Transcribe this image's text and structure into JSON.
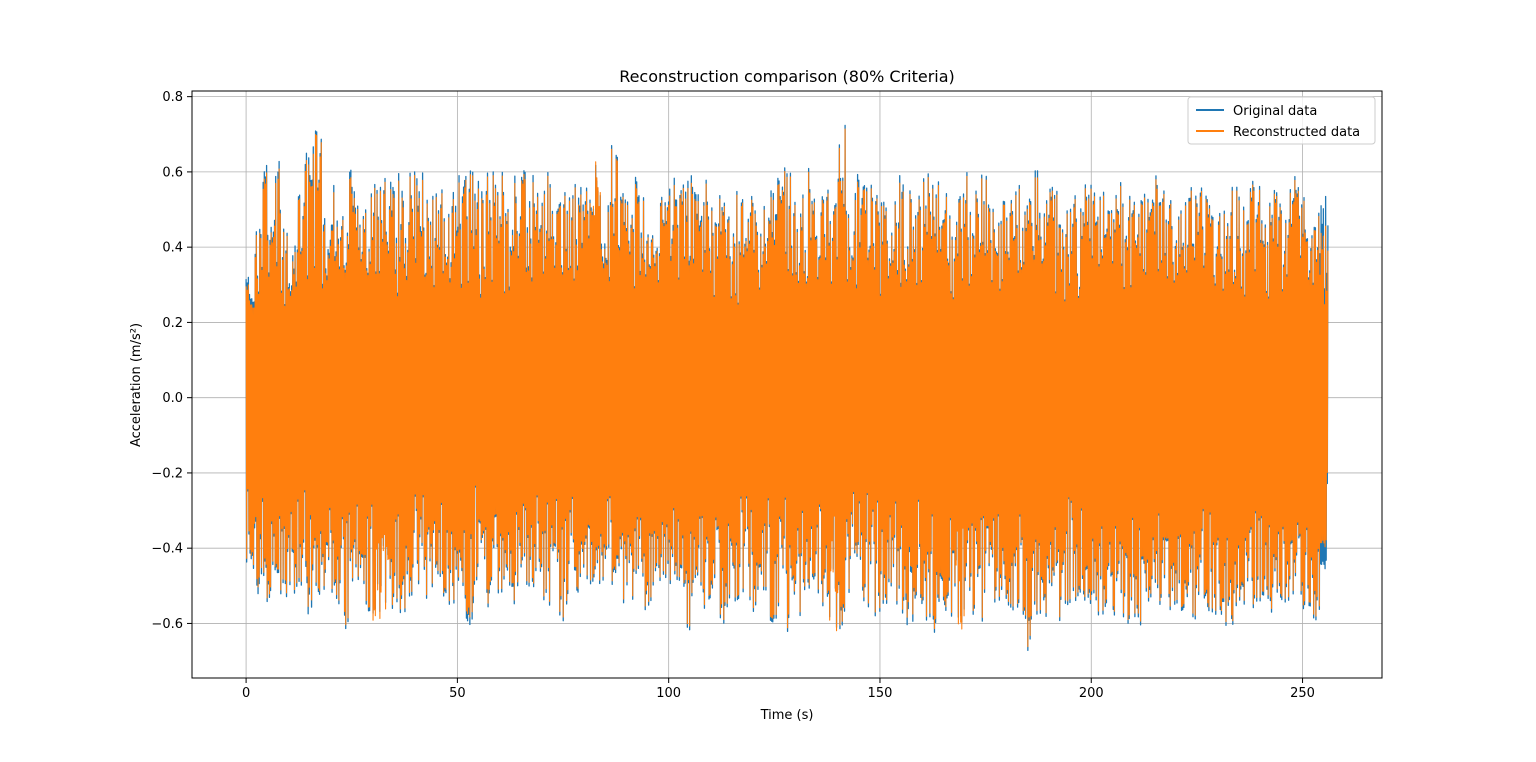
{
  "chart_data": {
    "type": "line",
    "title": "Reconstruction comparison (80% Criteria)",
    "xlabel": "Time (s)",
    "ylabel": "Acceleration (m/s²)",
    "xlim": [
      -12.8,
      268.8
    ],
    "ylim": [
      -0.745,
      0.815
    ],
    "xticks": [
      0,
      50,
      100,
      150,
      200,
      250
    ],
    "xtick_labels": [
      "0",
      "50",
      "100",
      "150",
      "200",
      "250"
    ],
    "yticks": [
      -0.6,
      -0.4,
      -0.2,
      0.0,
      0.2,
      0.4,
      0.6,
      0.8
    ],
    "ytick_labels": [
      "−0.6",
      "−0.4",
      "−0.2",
      "0.0",
      "0.2",
      "0.4",
      "0.6",
      "0.8"
    ],
    "grid": true,
    "legend_position": "top-right",
    "x_range": [
      0,
      256
    ],
    "series": [
      {
        "name": "Original data",
        "color": "#1f77b4",
        "envelope_upper": [
          0.33,
          0.45,
          0.62,
          0.63,
          0.53,
          0.47,
          0.55,
          0.68,
          0.74,
          0.52,
          0.59,
          0.5,
          0.62,
          0.6,
          0.56,
          0.56,
          0.58,
          0.6,
          0.6,
          0.63,
          0.62,
          0.54,
          0.56,
          0.56,
          0.6,
          0.6,
          0.61,
          0.58,
          0.61,
          0.61,
          0.63,
          0.62,
          0.61,
          0.62,
          0.55,
          0.61,
          0.61,
          0.58,
          0.63,
          0.58,
          0.58,
          0.66,
          0.57,
          0.67,
          0.55,
          0.55,
          0.62,
          0.57,
          0.52,
          0.59,
          0.6,
          0.62,
          0.6,
          0.6,
          0.58,
          0.59,
          0.57,
          0.52,
          0.56,
          0.55,
          0.56,
          0.55,
          0.62,
          0.62,
          0.63,
          0.56,
          0.61,
          0.55,
          0.56,
          0.57,
          0.75,
          0.5,
          0.6,
          0.58,
          0.58,
          0.54,
          0.59,
          0.6,
          0.59,
          0.55,
          0.62,
          0.58,
          0.58,
          0.53,
          0.55,
          0.61,
          0.55,
          0.59,
          0.57,
          0.54,
          0.58,
          0.57,
          0.55,
          0.65,
          0.58,
          0.57,
          0.55,
          0.57,
          0.53,
          0.56,
          0.56,
          0.55,
          0.6,
          0.58,
          0.54,
          0.6,
          0.55,
          0.58,
          0.6,
          0.56,
          0.58,
          0.6,
          0.55,
          0.6,
          0.56,
          0.55,
          0.58,
          0.57,
          0.55,
          0.6,
          0.55,
          0.56,
          0.54,
          0.57,
          0.6,
          0.55,
          0.54,
          0.55
        ],
        "envelope_lower": [
          -0.45,
          -0.58,
          -0.56,
          -0.5,
          -0.53,
          -0.55,
          -0.5,
          -0.58,
          -0.57,
          -0.53,
          -0.55,
          -0.62,
          -0.6,
          -0.55,
          -0.58,
          -0.62,
          -0.62,
          -0.57,
          -0.59,
          -0.55,
          -0.5,
          -0.57,
          -0.53,
          -0.57,
          -0.58,
          -0.57,
          -0.62,
          -0.52,
          -0.57,
          -0.52,
          -0.55,
          -0.54,
          -0.5,
          -0.52,
          -0.53,
          -0.55,
          -0.54,
          -0.6,
          -0.52,
          -0.52,
          -0.5,
          -0.55,
          -0.48,
          -0.52,
          -0.57,
          -0.6,
          -0.53,
          -0.58,
          -0.55,
          -0.51,
          -0.52,
          -0.53,
          -0.64,
          -0.57,
          -0.58,
          -0.5,
          -0.61,
          -0.54,
          -0.54,
          -0.55,
          -0.58,
          -0.55,
          -0.6,
          -0.54,
          -0.65,
          -0.58,
          -0.55,
          -0.53,
          -0.56,
          -0.65,
          -0.62,
          -0.53,
          -0.52,
          -0.55,
          -0.6,
          -0.58,
          -0.55,
          -0.58,
          -0.62,
          -0.56,
          -0.6,
          -0.63,
          -0.58,
          -0.6,
          -0.65,
          -0.55,
          -0.58,
          -0.61,
          -0.55,
          -0.55,
          -0.57,
          -0.59,
          -0.68,
          -0.62,
          -0.6,
          -0.55,
          -0.63,
          -0.56,
          -0.55,
          -0.57,
          -0.58,
          -0.57,
          -0.59,
          -0.58,
          -0.61,
          -0.6,
          -0.58,
          -0.55,
          -0.56,
          -0.6,
          -0.57,
          -0.58,
          -0.6,
          -0.56,
          -0.58,
          -0.6,
          -0.62,
          -0.58,
          -0.55,
          -0.57,
          -0.56,
          -0.6,
          -0.58,
          -0.57,
          -0.57,
          -0.58,
          -0.6,
          -0.47
        ]
      },
      {
        "name": "Reconstructed data",
        "color": "#ff7f0e",
        "envelope_upper": [
          0.31,
          0.44,
          0.6,
          0.61,
          0.52,
          0.45,
          0.54,
          0.66,
          0.73,
          0.5,
          0.57,
          0.49,
          0.6,
          0.59,
          0.55,
          0.55,
          0.57,
          0.58,
          0.58,
          0.62,
          0.6,
          0.53,
          0.55,
          0.55,
          0.58,
          0.58,
          0.6,
          0.56,
          0.6,
          0.6,
          0.62,
          0.6,
          0.6,
          0.6,
          0.54,
          0.6,
          0.6,
          0.57,
          0.62,
          0.56,
          0.57,
          0.67,
          0.55,
          0.66,
          0.54,
          0.54,
          0.6,
          0.56,
          0.51,
          0.58,
          0.58,
          0.61,
          0.58,
          0.58,
          0.57,
          0.58,
          0.56,
          0.51,
          0.55,
          0.54,
          0.55,
          0.54,
          0.6,
          0.61,
          0.62,
          0.55,
          0.6,
          0.54,
          0.55,
          0.56,
          0.74,
          0.49,
          0.58,
          0.57,
          0.57,
          0.53,
          0.58,
          0.58,
          0.58,
          0.54,
          0.61,
          0.57,
          0.57,
          0.52,
          0.54,
          0.6,
          0.54,
          0.58,
          0.56,
          0.53,
          0.57,
          0.56,
          0.54,
          0.63,
          0.57,
          0.56,
          0.54,
          0.56,
          0.52,
          0.55,
          0.55,
          0.54,
          0.59,
          0.57,
          0.53,
          0.59,
          0.54,
          0.57,
          0.59,
          0.55,
          0.57,
          0.59,
          0.54,
          0.59,
          0.55,
          0.54,
          0.57,
          0.56,
          0.54,
          0.59,
          0.54,
          0.55,
          0.53,
          0.56,
          0.59,
          0.54,
          0.53,
          0.47
        ],
        "envelope_lower": [
          -0.44,
          -0.56,
          -0.55,
          -0.49,
          -0.52,
          -0.54,
          -0.49,
          -0.56,
          -0.56,
          -0.52,
          -0.54,
          -0.61,
          -0.59,
          -0.54,
          -0.57,
          -0.64,
          -0.64,
          -0.56,
          -0.58,
          -0.54,
          -0.49,
          -0.56,
          -0.52,
          -0.56,
          -0.57,
          -0.56,
          -0.6,
          -0.51,
          -0.56,
          -0.51,
          -0.54,
          -0.53,
          -0.49,
          -0.51,
          -0.52,
          -0.54,
          -0.53,
          -0.59,
          -0.51,
          -0.51,
          -0.49,
          -0.54,
          -0.47,
          -0.51,
          -0.56,
          -0.59,
          -0.52,
          -0.57,
          -0.54,
          -0.5,
          -0.51,
          -0.52,
          -0.63,
          -0.56,
          -0.57,
          -0.49,
          -0.6,
          -0.53,
          -0.53,
          -0.54,
          -0.57,
          -0.54,
          -0.59,
          -0.53,
          -0.64,
          -0.57,
          -0.54,
          -0.52,
          -0.55,
          -0.66,
          -0.61,
          -0.52,
          -0.51,
          -0.54,
          -0.59,
          -0.57,
          -0.54,
          -0.57,
          -0.6,
          -0.55,
          -0.59,
          -0.62,
          -0.57,
          -0.59,
          -0.67,
          -0.54,
          -0.57,
          -0.6,
          -0.54,
          -0.54,
          -0.56,
          -0.58,
          -0.67,
          -0.61,
          -0.59,
          -0.54,
          -0.62,
          -0.55,
          -0.54,
          -0.56,
          -0.57,
          -0.56,
          -0.58,
          -0.57,
          -0.6,
          -0.59,
          -0.57,
          -0.54,
          -0.55,
          -0.59,
          -0.56,
          -0.57,
          -0.59,
          -0.55,
          -0.57,
          -0.59,
          -0.61,
          -0.57,
          -0.54,
          -0.56,
          -0.55,
          -0.59,
          -0.57,
          -0.56,
          -0.56,
          -0.57,
          -0.59,
          -0.41
        ]
      }
    ]
  }
}
